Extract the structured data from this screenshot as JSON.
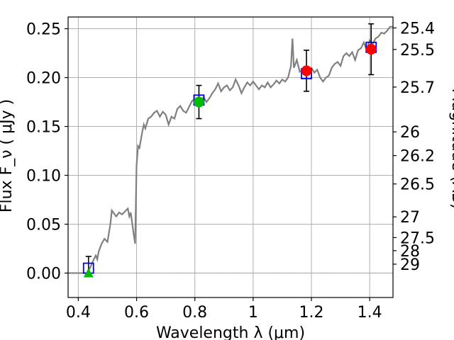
{
  "chart_data": {
    "type": "scatter",
    "xlabel": "Wavelength  λ (μm)",
    "ylabel": "Flux  F_ν  ( μJy )",
    "y2label": "Magnitude (AB)",
    "xlim": [
      0.365,
      1.48
    ],
    "ylim": [
      -0.025,
      0.262
    ],
    "x_ticks": [
      0.4,
      0.6,
      0.8,
      1.0,
      1.2,
      1.4
    ],
    "x_tick_labels": [
      "0.4",
      "0.6",
      "0.8",
      "1",
      "1.2",
      "1.4"
    ],
    "y_ticks": [
      0.0,
      0.05,
      0.1,
      0.15,
      0.2,
      0.25
    ],
    "y_tick_labels": [
      "0.00",
      "0.05",
      "0.10",
      "0.15",
      "0.20",
      "0.25"
    ],
    "y2_ticks": [
      {
        "label": "25.4",
        "flux": 0.2508
      },
      {
        "label": "25.5",
        "flux": 0.2288
      },
      {
        "label": "25.7",
        "flux": 0.1903
      },
      {
        "label": "26",
        "flux": 0.1445
      },
      {
        "label": "26.2",
        "flux": 0.1202
      },
      {
        "label": "26.5",
        "flux": 0.0912
      },
      {
        "label": "27",
        "flux": 0.0575
      },
      {
        "label": "27.5",
        "flux": 0.0363
      },
      {
        "label": "28",
        "flux": 0.0229
      },
      {
        "label": "29",
        "flux": 0.0091
      }
    ],
    "grid": true,
    "colors": {
      "sed": "#808080",
      "model_box": "#0000ff",
      "green_point": "#00bb00",
      "red_point": "#ff0000",
      "errorbar": "#000000",
      "grid": "#b0b0b0"
    },
    "series": [
      {
        "kind": "line",
        "points": [
          [
            0.365,
            0.0
          ],
          [
            0.43,
            0.0
          ],
          [
            0.44,
            0.005
          ],
          [
            0.45,
            0.012
          ],
          [
            0.46,
            0.018
          ],
          [
            0.465,
            0.014
          ],
          [
            0.47,
            0.022
          ],
          [
            0.48,
            0.03
          ],
          [
            0.49,
            0.035
          ],
          [
            0.5,
            0.032
          ],
          [
            0.51,
            0.05
          ],
          [
            0.515,
            0.064
          ],
          [
            0.52,
            0.062
          ],
          [
            0.53,
            0.058
          ],
          [
            0.54,
            0.062
          ],
          [
            0.55,
            0.06
          ],
          [
            0.56,
            0.063
          ],
          [
            0.57,
            0.066
          ],
          [
            0.575,
            0.058
          ],
          [
            0.58,
            0.062
          ],
          [
            0.59,
            0.04
          ],
          [
            0.595,
            0.03
          ],
          [
            0.6,
            0.11
          ],
          [
            0.605,
            0.13
          ],
          [
            0.61,
            0.128
          ],
          [
            0.62,
            0.145
          ],
          [
            0.625,
            0.152
          ],
          [
            0.63,
            0.148
          ],
          [
            0.64,
            0.158
          ],
          [
            0.65,
            0.16
          ],
          [
            0.66,
            0.164
          ],
          [
            0.67,
            0.166
          ],
          [
            0.68,
            0.16
          ],
          [
            0.69,
            0.165
          ],
          [
            0.7,
            0.162
          ],
          [
            0.71,
            0.152
          ],
          [
            0.72,
            0.16
          ],
          [
            0.73,
            0.158
          ],
          [
            0.74,
            0.168
          ],
          [
            0.75,
            0.171
          ],
          [
            0.76,
            0.166
          ],
          [
            0.77,
            0.164
          ],
          [
            0.78,
            0.17
          ],
          [
            0.79,
            0.176
          ],
          [
            0.8,
            0.178
          ],
          [
            0.81,
            0.176
          ],
          [
            0.82,
            0.172
          ],
          [
            0.83,
            0.18
          ],
          [
            0.84,
            0.175
          ],
          [
            0.85,
            0.179
          ],
          [
            0.86,
            0.184
          ],
          [
            0.87,
            0.188
          ],
          [
            0.88,
            0.194
          ],
          [
            0.89,
            0.186
          ],
          [
            0.9,
            0.19
          ],
          [
            0.91,
            0.192
          ],
          [
            0.92,
            0.187
          ],
          [
            0.93,
            0.19
          ],
          [
            0.94,
            0.198
          ],
          [
            0.95,
            0.192
          ],
          [
            0.96,
            0.184
          ],
          [
            0.97,
            0.19
          ],
          [
            0.98,
            0.195
          ],
          [
            0.99,
            0.192
          ],
          [
            1.0,
            0.196
          ],
          [
            1.01,
            0.192
          ],
          [
            1.02,
            0.188
          ],
          [
            1.03,
            0.192
          ],
          [
            1.04,
            0.19
          ],
          [
            1.05,
            0.195
          ],
          [
            1.06,
            0.19
          ],
          [
            1.07,
            0.193
          ],
          [
            1.08,
            0.197
          ],
          [
            1.09,
            0.194
          ],
          [
            1.1,
            0.198
          ],
          [
            1.11,
            0.196
          ],
          [
            1.12,
            0.2
          ],
          [
            1.13,
            0.212
          ],
          [
            1.135,
            0.24
          ],
          [
            1.14,
            0.21
          ],
          [
            1.15,
            0.218
          ],
          [
            1.16,
            0.206
          ],
          [
            1.17,
            0.208
          ],
          [
            1.18,
            0.207
          ],
          [
            1.19,
            0.206
          ],
          [
            1.2,
            0.21
          ],
          [
            1.21,
            0.205
          ],
          [
            1.22,
            0.208
          ],
          [
            1.23,
            0.2
          ],
          [
            1.24,
            0.196
          ],
          [
            1.25,
            0.2
          ],
          [
            1.26,
            0.202
          ],
          [
            1.27,
            0.21
          ],
          [
            1.28,
            0.214
          ],
          [
            1.29,
            0.216
          ],
          [
            1.3,
            0.212
          ],
          [
            1.31,
            0.222
          ],
          [
            1.32,
            0.225
          ],
          [
            1.33,
            0.222
          ],
          [
            1.34,
            0.226
          ],
          [
            1.35,
            0.218
          ],
          [
            1.36,
            0.228
          ],
          [
            1.37,
            0.23
          ],
          [
            1.38,
            0.236
          ],
          [
            1.39,
            0.228
          ],
          [
            1.4,
            0.238
          ],
          [
            1.41,
            0.234
          ],
          [
            1.42,
            0.24
          ],
          [
            1.43,
            0.242
          ],
          [
            1.44,
            0.246
          ],
          [
            1.45,
            0.245
          ],
          [
            1.46,
            0.248
          ],
          [
            1.47,
            0.252
          ],
          [
            1.48,
            0.252
          ]
        ]
      },
      {
        "kind": "model_boxes",
        "points": [
          [
            0.435,
            0.005
          ],
          [
            0.814,
            0.177
          ],
          [
            1.183,
            0.204
          ],
          [
            1.405,
            0.231
          ]
        ]
      },
      {
        "kind": "green_triangle",
        "points": [
          [
            0.435,
            0.0
          ]
        ]
      },
      {
        "kind": "green_circle",
        "points": [
          [
            0.814,
            0.175
          ]
        ]
      },
      {
        "kind": "red_circle",
        "points": [
          [
            1.183,
            0.207
          ],
          [
            1.405,
            0.229
          ]
        ]
      },
      {
        "kind": "errorbars",
        "points": [
          {
            "x": 0.435,
            "low": 0.0,
            "high": 0.017
          },
          {
            "x": 0.814,
            "low": 0.158,
            "high": 0.192
          },
          {
            "x": 1.183,
            "low": 0.186,
            "high": 0.228
          },
          {
            "x": 1.405,
            "low": 0.203,
            "high": 0.255
          }
        ]
      }
    ]
  }
}
